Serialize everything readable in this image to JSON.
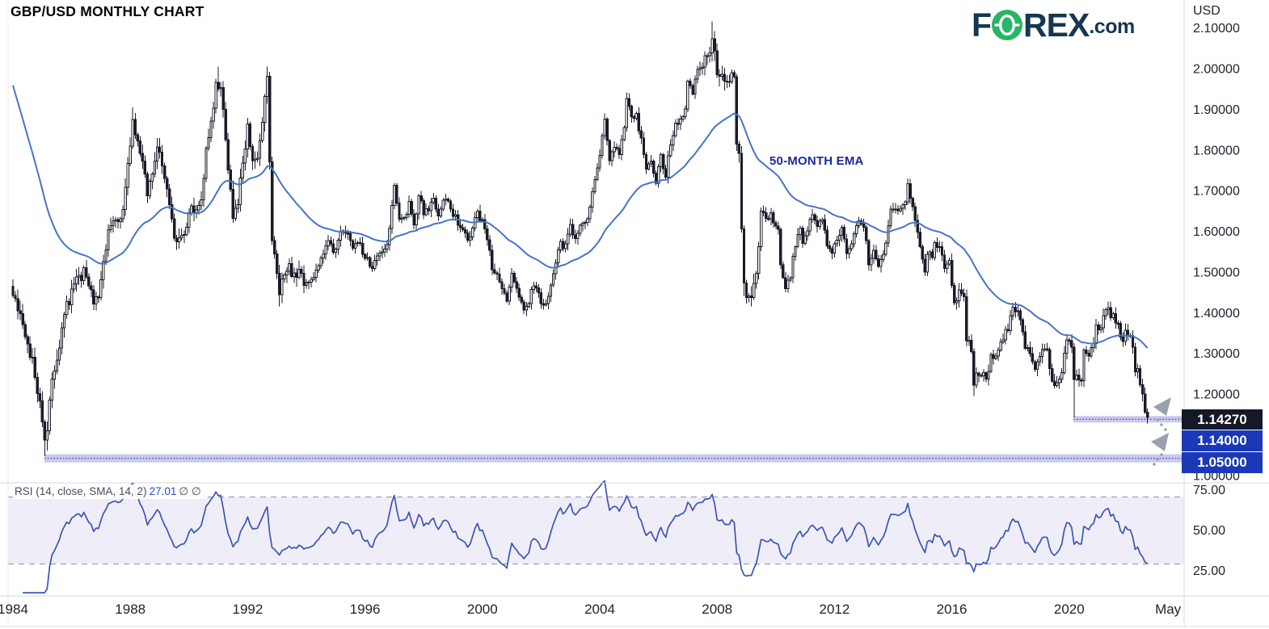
{
  "header": {
    "title": "GBP/USD MONTHLY CHART",
    "logo": {
      "part1": "F",
      "part2": "REX",
      "suffix": ".com",
      "navy": "#16374e",
      "green": "#27b567"
    }
  },
  "price_axis": {
    "currency": "USD",
    "ticks": [
      {
        "value": 2.1,
        "label": "2.10000"
      },
      {
        "value": 2.0,
        "label": "2.00000"
      },
      {
        "value": 1.9,
        "label": "1.90000"
      },
      {
        "value": 1.8,
        "label": "1.80000"
      },
      {
        "value": 1.7,
        "label": "1.70000"
      },
      {
        "value": 1.6,
        "label": "1.60000"
      },
      {
        "value": 1.5,
        "label": "1.50000"
      },
      {
        "value": 1.4,
        "label": "1.40000"
      },
      {
        "value": 1.3,
        "label": "1.30000"
      },
      {
        "value": 1.2,
        "label": "1.20000"
      },
      {
        "value": 1.1,
        "label": "1.10000"
      },
      {
        "value": 1.0,
        "label": "1.00000"
      }
    ],
    "last_price_tag": {
      "text": "1.14270",
      "bg": "#141828"
    },
    "level_tags": [
      {
        "text": "1.14000",
        "bg": "#1a38b8"
      },
      {
        "text": "1.05000",
        "bg": "#1a38b8"
      }
    ]
  },
  "time_axis": {
    "years": [
      1984,
      1988,
      1992,
      1996,
      2000,
      2004,
      2008,
      2012,
      2016,
      2020
    ],
    "partial_label": "May",
    "partial_label_year": 2023.37
  },
  "rsi_pane": {
    "label": "RSI (14, close, SMA, 14, 2)",
    "value": "27.01",
    "extra": "∅ ∅",
    "ticks": [
      {
        "value": 75,
        "label": "75.00"
      },
      {
        "value": 50,
        "label": "50.00"
      },
      {
        "value": 25,
        "label": "25.00"
      }
    ]
  },
  "main_pane": {
    "ema_label": "50-MONTH EMA"
  },
  "colors": {
    "candle": "#181c27",
    "ema_line": "#4674c6",
    "rsi_line": "#3b55b5",
    "support_zone": "#c7c4e8",
    "rsi_band": "#efedf8",
    "dotted_level": "#3d49c6",
    "dashed_level": "#8f93a3",
    "axis_text": "#20232e",
    "border": "#d8dae2",
    "arrow": "#9ba0ad"
  },
  "chart_data": [
    {
      "pane": "price",
      "type": "candlestick",
      "symbol": "GBP/USD",
      "timeframe": "monthly",
      "title": "GBP/USD MONTHLY CHART",
      "x_start": 1984.0,
      "x_end": 2022.667,
      "ylim": [
        0.98,
        2.17
      ],
      "grid": false,
      "last_close": 1.1427,
      "ema": {
        "period": 50,
        "seed": 1.98,
        "label": "50-MONTH EMA"
      },
      "support_zones": [
        {
          "top": 1.146,
          "bottom": 1.13,
          "line": 1.138,
          "from": 2020.15
        },
        {
          "top": 1.052,
          "bottom": 1.032,
          "line": 1.042,
          "from": 1985.08
        }
      ],
      "key_extremes": [
        [
          1985.08,
          "low",
          1.047
        ],
        [
          1988.08,
          "high",
          1.905
        ],
        [
          1991.0,
          "high",
          2.005
        ],
        [
          1992.67,
          "high",
          2.005
        ],
        [
          1993.08,
          "low",
          1.415
        ],
        [
          2007.83,
          "high",
          2.116
        ],
        [
          2008.92,
          "low",
          1.44
        ],
        [
          2014.5,
          "high",
          1.719
        ],
        [
          2016.75,
          "low",
          1.195
        ],
        [
          2020.17,
          "low",
          1.142
        ],
        [
          2021.33,
          "high",
          1.425
        ],
        [
          2022.67,
          "low",
          1.1405
        ]
      ],
      "anchors": [
        [
          1984.0,
          1.455
        ],
        [
          1984.25,
          1.4
        ],
        [
          1984.5,
          1.335
        ],
        [
          1984.75,
          1.245
        ],
        [
          1984.92,
          1.17
        ],
        [
          1985.08,
          1.085
        ],
        [
          1985.17,
          1.1
        ],
        [
          1985.33,
          1.245
        ],
        [
          1985.5,
          1.29
        ],
        [
          1985.75,
          1.405
        ],
        [
          1986.0,
          1.445
        ],
        [
          1986.17,
          1.475
        ],
        [
          1986.42,
          1.5
        ],
        [
          1986.58,
          1.475
        ],
        [
          1986.75,
          1.435
        ],
        [
          1986.92,
          1.44
        ],
        [
          1987.0,
          1.47
        ],
        [
          1987.25,
          1.6
        ],
        [
          1987.5,
          1.62
        ],
        [
          1987.75,
          1.645
        ],
        [
          1987.92,
          1.77
        ],
        [
          1988.08,
          1.875
        ],
        [
          1988.25,
          1.82
        ],
        [
          1988.42,
          1.78
        ],
        [
          1988.58,
          1.695
        ],
        [
          1988.75,
          1.745
        ],
        [
          1988.92,
          1.81
        ],
        [
          1989.08,
          1.77
        ],
        [
          1989.25,
          1.695
        ],
        [
          1989.42,
          1.625
        ],
        [
          1989.58,
          1.565
        ],
        [
          1989.75,
          1.585
        ],
        [
          1989.92,
          1.605
        ],
        [
          1990.08,
          1.66
        ],
        [
          1990.25,
          1.64
        ],
        [
          1990.42,
          1.685
        ],
        [
          1990.58,
          1.795
        ],
        [
          1990.75,
          1.87
        ],
        [
          1990.92,
          1.955
        ],
        [
          1991.08,
          1.955
        ],
        [
          1991.17,
          1.91
        ],
        [
          1991.33,
          1.755
        ],
        [
          1991.5,
          1.63
        ],
        [
          1991.67,
          1.68
        ],
        [
          1991.75,
          1.73
        ],
        [
          1991.92,
          1.795
        ],
        [
          1992.0,
          1.855
        ],
        [
          1992.17,
          1.77
        ],
        [
          1992.33,
          1.78
        ],
        [
          1992.5,
          1.87
        ],
        [
          1992.58,
          1.925
        ],
        [
          1992.67,
          1.97
        ],
        [
          1992.75,
          1.78
        ],
        [
          1992.83,
          1.57
        ],
        [
          1992.92,
          1.53
        ],
        [
          1993.08,
          1.445
        ],
        [
          1993.25,
          1.5
        ],
        [
          1993.42,
          1.51
        ],
        [
          1993.58,
          1.485
        ],
        [
          1993.75,
          1.5
        ],
        [
          1993.92,
          1.48
        ],
        [
          1994.08,
          1.48
        ],
        [
          1994.25,
          1.48
        ],
        [
          1994.42,
          1.515
        ],
        [
          1994.58,
          1.545
        ],
        [
          1994.75,
          1.575
        ],
        [
          1994.92,
          1.55
        ],
        [
          1995.08,
          1.575
        ],
        [
          1995.25,
          1.61
        ],
        [
          1995.42,
          1.595
        ],
        [
          1995.58,
          1.56
        ],
        [
          1995.75,
          1.58
        ],
        [
          1995.92,
          1.55
        ],
        [
          1996.08,
          1.53
        ],
        [
          1996.25,
          1.51
        ],
        [
          1996.42,
          1.54
        ],
        [
          1996.58,
          1.555
        ],
        [
          1996.75,
          1.565
        ],
        [
          1996.92,
          1.665
        ],
        [
          1997.0,
          1.71
        ],
        [
          1997.17,
          1.62
        ],
        [
          1997.33,
          1.635
        ],
        [
          1997.5,
          1.665
        ],
        [
          1997.67,
          1.61
        ],
        [
          1997.83,
          1.69
        ],
        [
          1998.0,
          1.645
        ],
        [
          1998.17,
          1.66
        ],
        [
          1998.33,
          1.675
        ],
        [
          1998.5,
          1.64
        ],
        [
          1998.67,
          1.68
        ],
        [
          1998.83,
          1.665
        ],
        [
          1999.0,
          1.645
        ],
        [
          1999.17,
          1.62
        ],
        [
          1999.33,
          1.6
        ],
        [
          1999.5,
          1.58
        ],
        [
          1999.67,
          1.61
        ],
        [
          1999.83,
          1.645
        ],
        [
          2000.0,
          1.62
        ],
        [
          2000.17,
          1.58
        ],
        [
          2000.33,
          1.51
        ],
        [
          2000.5,
          1.5
        ],
        [
          2000.67,
          1.46
        ],
        [
          2000.83,
          1.425
        ],
        [
          2001.0,
          1.495
        ],
        [
          2001.17,
          1.455
        ],
        [
          2001.33,
          1.42
        ],
        [
          2001.5,
          1.41
        ],
        [
          2001.67,
          1.455
        ],
        [
          2001.83,
          1.46
        ],
        [
          2002.0,
          1.43
        ],
        [
          2002.17,
          1.425
        ],
        [
          2002.33,
          1.46
        ],
        [
          2002.5,
          1.525
        ],
        [
          2002.67,
          1.57
        ],
        [
          2002.83,
          1.56
        ],
        [
          2003.0,
          1.61
        ],
        [
          2003.17,
          1.58
        ],
        [
          2003.33,
          1.615
        ],
        [
          2003.5,
          1.62
        ],
        [
          2003.67,
          1.66
        ],
        [
          2003.83,
          1.72
        ],
        [
          2004.0,
          1.785
        ],
        [
          2004.17,
          1.87
        ],
        [
          2004.33,
          1.775
        ],
        [
          2004.5,
          1.815
        ],
        [
          2004.67,
          1.79
        ],
        [
          2004.83,
          1.855
        ],
        [
          2004.92,
          1.925
        ],
        [
          2005.08,
          1.88
        ],
        [
          2005.25,
          1.89
        ],
        [
          2005.42,
          1.82
        ],
        [
          2005.58,
          1.755
        ],
        [
          2005.75,
          1.77
        ],
        [
          2005.92,
          1.72
        ],
        [
          2006.08,
          1.78
        ],
        [
          2006.25,
          1.74
        ],
        [
          2006.42,
          1.815
        ],
        [
          2006.58,
          1.87
        ],
        [
          2006.75,
          1.87
        ],
        [
          2006.92,
          1.905
        ],
        [
          2007.0,
          1.96
        ],
        [
          2007.17,
          1.945
        ],
        [
          2007.33,
          1.99
        ],
        [
          2007.5,
          2.01
        ],
        [
          2007.67,
          2.035
        ],
        [
          2007.83,
          2.065
        ],
        [
          2007.92,
          2.03
        ],
        [
          2008.0,
          1.985
        ],
        [
          2008.17,
          1.985
        ],
        [
          2008.33,
          1.975
        ],
        [
          2008.5,
          1.99
        ],
        [
          2008.58,
          1.975
        ],
        [
          2008.67,
          1.82
        ],
        [
          2008.75,
          1.78
        ],
        [
          2008.83,
          1.605
        ],
        [
          2008.92,
          1.48
        ],
        [
          2009.0,
          1.445
        ],
        [
          2009.08,
          1.43
        ],
        [
          2009.17,
          1.435
        ],
        [
          2009.33,
          1.48
        ],
        [
          2009.5,
          1.645
        ],
        [
          2009.67,
          1.63
        ],
        [
          2009.83,
          1.645
        ],
        [
          2009.92,
          1.62
        ],
        [
          2010.08,
          1.6
        ],
        [
          2010.17,
          1.52
        ],
        [
          2010.33,
          1.455
        ],
        [
          2010.5,
          1.495
        ],
        [
          2010.67,
          1.57
        ],
        [
          2010.83,
          1.605
        ],
        [
          2010.92,
          1.56
        ],
        [
          2011.08,
          1.6
        ],
        [
          2011.25,
          1.64
        ],
        [
          2011.42,
          1.61
        ],
        [
          2011.58,
          1.63
        ],
        [
          2011.75,
          1.56
        ],
        [
          2011.92,
          1.555
        ],
        [
          2012.08,
          1.58
        ],
        [
          2012.25,
          1.6
        ],
        [
          2012.42,
          1.55
        ],
        [
          2012.58,
          1.57
        ],
        [
          2012.75,
          1.615
        ],
        [
          2012.92,
          1.625
        ],
        [
          2013.08,
          1.585
        ],
        [
          2013.17,
          1.515
        ],
        [
          2013.33,
          1.555
        ],
        [
          2013.5,
          1.52
        ],
        [
          2013.67,
          1.55
        ],
        [
          2013.83,
          1.61
        ],
        [
          2013.92,
          1.655
        ],
        [
          2014.08,
          1.645
        ],
        [
          2014.25,
          1.665
        ],
        [
          2014.42,
          1.675
        ],
        [
          2014.5,
          1.71
        ],
        [
          2014.67,
          1.66
        ],
        [
          2014.83,
          1.6
        ],
        [
          2014.92,
          1.565
        ],
        [
          2015.08,
          1.505
        ],
        [
          2015.17,
          1.545
        ],
        [
          2015.33,
          1.535
        ],
        [
          2015.42,
          1.57
        ],
        [
          2015.58,
          1.56
        ],
        [
          2015.75,
          1.515
        ],
        [
          2015.92,
          1.535
        ],
        [
          2016.0,
          1.475
        ],
        [
          2016.08,
          1.425
        ],
        [
          2016.17,
          1.44
        ],
        [
          2016.33,
          1.455
        ],
        [
          2016.42,
          1.445
        ],
        [
          2016.5,
          1.33
        ],
        [
          2016.58,
          1.325
        ],
        [
          2016.67,
          1.295
        ],
        [
          2016.75,
          1.22
        ],
        [
          2016.83,
          1.25
        ],
        [
          2016.92,
          1.235
        ],
        [
          2017.08,
          1.255
        ],
        [
          2017.17,
          1.24
        ],
        [
          2017.33,
          1.29
        ],
        [
          2017.5,
          1.3
        ],
        [
          2017.67,
          1.32
        ],
        [
          2017.75,
          1.325
        ],
        [
          2017.83,
          1.35
        ],
        [
          2017.92,
          1.35
        ],
        [
          2018.08,
          1.42
        ],
        [
          2018.25,
          1.405
        ],
        [
          2018.33,
          1.375
        ],
        [
          2018.5,
          1.315
        ],
        [
          2018.67,
          1.3
        ],
        [
          2018.83,
          1.27
        ],
        [
          2018.92,
          1.275
        ],
        [
          2019.08,
          1.31
        ],
        [
          2019.25,
          1.305
        ],
        [
          2019.33,
          1.26
        ],
        [
          2019.5,
          1.215
        ],
        [
          2019.58,
          1.22
        ],
        [
          2019.67,
          1.23
        ],
        [
          2019.83,
          1.29
        ],
        [
          2019.92,
          1.325
        ],
        [
          2020.08,
          1.32
        ],
        [
          2020.17,
          1.24
        ],
        [
          2020.33,
          1.235
        ],
        [
          2020.42,
          1.24
        ],
        [
          2020.5,
          1.31
        ],
        [
          2020.67,
          1.29
        ],
        [
          2020.83,
          1.33
        ],
        [
          2020.92,
          1.365
        ],
        [
          2021.08,
          1.37
        ],
        [
          2021.17,
          1.395
        ],
        [
          2021.33,
          1.42
        ],
        [
          2021.42,
          1.385
        ],
        [
          2021.5,
          1.39
        ],
        [
          2021.67,
          1.375
        ],
        [
          2021.75,
          1.345
        ],
        [
          2021.83,
          1.33
        ],
        [
          2021.92,
          1.355
        ],
        [
          2022.0,
          1.345
        ],
        [
          2022.08,
          1.34
        ],
        [
          2022.17,
          1.315
        ],
        [
          2022.25,
          1.255
        ],
        [
          2022.33,
          1.26
        ],
        [
          2022.42,
          1.215
        ],
        [
          2022.5,
          1.21
        ],
        [
          2022.58,
          1.16
        ],
        [
          2022.67,
          1.1427
        ]
      ]
    },
    {
      "pane": "oscillator",
      "type": "line",
      "indicator": "RSI",
      "period": 14,
      "levels": [
        75,
        50,
        25
      ],
      "last_value": 27.01,
      "band_between": [
        25,
        75
      ],
      "grid": false,
      "legend_position": "top-left"
    }
  ]
}
